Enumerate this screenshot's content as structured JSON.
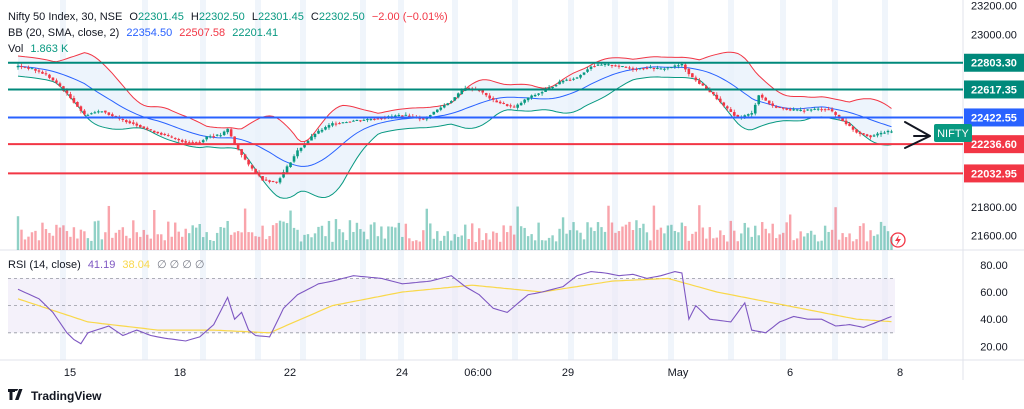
{
  "legend": {
    "symbol": "Nifty 50 Index, 30, NSE",
    "o_label": "O",
    "o": "22301.45",
    "h_label": "H",
    "h": "22302.50",
    "l_label": "L",
    "l": "22301.45",
    "c_label": "C",
    "c": "22302.50",
    "change": "−2.00 (−0.01%)",
    "bb_label": "BB (20, SMA, close, 2)",
    "bb_basis": "22354.50",
    "bb_upper": "22507.58",
    "bb_lower": "22201.41",
    "vol_label": "Vol",
    "vol": "1.863 K",
    "rsi_label": "RSI (14, close)",
    "rsi": "41.19",
    "rsi_ma": "38.04",
    "rsi_empties": "∅ ∅ ∅ ∅"
  },
  "branding": {
    "name": "TradingView",
    "icon": "tradingview-logo-icon"
  },
  "chart_data": {
    "type": "candlestick",
    "symbol": "NIFTY",
    "timeframe": "30",
    "x_ticks": [
      "15",
      "18",
      "22",
      "24",
      "06:00",
      "29",
      "May",
      "6",
      "8"
    ],
    "price_axis": [
      "23200.00",
      "23000.00",
      "21800.00",
      "21600.00"
    ],
    "ylim": [
      21500,
      23240
    ],
    "horizontal_levels": [
      {
        "value": 22803.3,
        "label": "22803.30",
        "color": "#00897b"
      },
      {
        "value": 22617.35,
        "label": "22617.35",
        "color": "#00897b"
      },
      {
        "value": 22422.55,
        "label": "22422.55",
        "color": "#2962ff"
      },
      {
        "value": 22236.6,
        "label": "22236.60",
        "color": "#f23645"
      },
      {
        "value": 22032.95,
        "label": "22032.95",
        "color": "#f23645"
      }
    ],
    "price_path": [
      [
        0,
        22780
      ],
      [
        4,
        22760
      ],
      [
        8,
        22720
      ],
      [
        12,
        22640
      ],
      [
        16,
        22530
      ],
      [
        19,
        22440
      ],
      [
        24,
        22470
      ],
      [
        28,
        22420
      ],
      [
        33,
        22380
      ],
      [
        38,
        22330
      ],
      [
        42,
        22300
      ],
      [
        44,
        22280
      ],
      [
        48,
        22250
      ],
      [
        52,
        22250
      ],
      [
        54,
        22290
      ],
      [
        58,
        22300
      ],
      [
        60,
        22340
      ],
      [
        62,
        22240
      ],
      [
        66,
        22090
      ],
      [
        70,
        21990
      ],
      [
        74,
        21970
      ],
      [
        76,
        22040
      ],
      [
        80,
        22190
      ],
      [
        85,
        22310
      ],
      [
        90,
        22380
      ],
      [
        96,
        22400
      ],
      [
        104,
        22420
      ],
      [
        110,
        22440
      ],
      [
        116,
        22410
      ],
      [
        119,
        22460
      ],
      [
        124,
        22540
      ],
      [
        128,
        22630
      ],
      [
        132,
        22610
      ],
      [
        136,
        22540
      ],
      [
        142,
        22490
      ],
      [
        146,
        22560
      ],
      [
        150,
        22600
      ],
      [
        156,
        22680
      ],
      [
        160,
        22700
      ],
      [
        164,
        22780
      ],
      [
        168,
        22790
      ],
      [
        172,
        22780
      ],
      [
        176,
        22760
      ],
      [
        180,
        22770
      ],
      [
        184,
        22760
      ],
      [
        188,
        22780
      ],
      [
        190,
        22790
      ],
      [
        193,
        22700
      ],
      [
        196,
        22640
      ],
      [
        199,
        22580
      ],
      [
        202,
        22500
      ],
      [
        206,
        22420
      ],
      [
        210,
        22450
      ],
      [
        212,
        22580
      ],
      [
        216,
        22500
      ],
      [
        220,
        22480
      ],
      [
        224,
        22470
      ],
      [
        228,
        22480
      ],
      [
        232,
        22480
      ],
      [
        236,
        22400
      ],
      [
        240,
        22320
      ],
      [
        244,
        22290
      ],
      [
        248,
        22320
      ],
      [
        251,
        22330
      ]
    ],
    "bollinger": {
      "basis_label": "BB basis",
      "upper_label": "BB upper",
      "lower_label": "BB lower",
      "last": {
        "basis": 22354.5,
        "upper": 22507.58,
        "lower": 22201.41
      }
    },
    "volume": {
      "last": "1.863 K"
    },
    "rsi": {
      "length": 14,
      "last": 41.19,
      "ma_last": 38.04,
      "levels": [
        80,
        60,
        40,
        20
      ],
      "upper_band": 70,
      "lower_band": 30,
      "path": [
        [
          0,
          62
        ],
        [
          6,
          55
        ],
        [
          10,
          45
        ],
        [
          14,
          30
        ],
        [
          16,
          25
        ],
        [
          18,
          22
        ],
        [
          20,
          30
        ],
        [
          26,
          35
        ],
        [
          30,
          28
        ],
        [
          34,
          32
        ],
        [
          38,
          28
        ],
        [
          42,
          26
        ],
        [
          48,
          24
        ],
        [
          52,
          27
        ],
        [
          56,
          36
        ],
        [
          60,
          56
        ],
        [
          62,
          40
        ],
        [
          64,
          45
        ],
        [
          66,
          32
        ],
        [
          68,
          28
        ],
        [
          72,
          27
        ],
        [
          76,
          48
        ],
        [
          80,
          58
        ],
        [
          86,
          66
        ],
        [
          90,
          68
        ],
        [
          96,
          72
        ],
        [
          104,
          70
        ],
        [
          110,
          66
        ],
        [
          118,
          68
        ],
        [
          124,
          72
        ],
        [
          128,
          64
        ],
        [
          132,
          58
        ],
        [
          136,
          48
        ],
        [
          140,
          45
        ],
        [
          146,
          58
        ],
        [
          150,
          60
        ],
        [
          156,
          64
        ],
        [
          160,
          72
        ],
        [
          164,
          75
        ],
        [
          168,
          74
        ],
        [
          172,
          72
        ],
        [
          176,
          73
        ],
        [
          180,
          70
        ],
        [
          184,
          72
        ],
        [
          188,
          75
        ],
        [
          190,
          74
        ],
        [
          192,
          40
        ],
        [
          194,
          50
        ],
        [
          198,
          40
        ],
        [
          204,
          38
        ],
        [
          208,
          52
        ],
        [
          210,
          32
        ],
        [
          214,
          30
        ],
        [
          218,
          38
        ],
        [
          222,
          42
        ],
        [
          226,
          40
        ],
        [
          230,
          40
        ],
        [
          234,
          35
        ],
        [
          238,
          36
        ],
        [
          242,
          34
        ],
        [
          246,
          38
        ],
        [
          250,
          42
        ],
        [
          251,
          41
        ]
      ],
      "ma_path": [
        [
          0,
          55
        ],
        [
          20,
          38
        ],
        [
          40,
          32
        ],
        [
          56,
          32
        ],
        [
          72,
          30
        ],
        [
          90,
          50
        ],
        [
          110,
          60
        ],
        [
          130,
          65
        ],
        [
          150,
          60
        ],
        [
          170,
          68
        ],
        [
          186,
          70
        ],
        [
          200,
          60
        ],
        [
          220,
          50
        ],
        [
          240,
          40
        ],
        [
          251,
          38
        ]
      ]
    }
  },
  "last_label": {
    "text": "NIFTY",
    "color": "#089981"
  },
  "colors": {
    "up": "#089981",
    "down": "#f23645",
    "bb_basis": "#2962ff",
    "bb_fill": "#e8f1fb",
    "rsi": "#7e57c2",
    "rsi_ma": "#f9d84a",
    "rsi_band": "#ede7f6"
  }
}
